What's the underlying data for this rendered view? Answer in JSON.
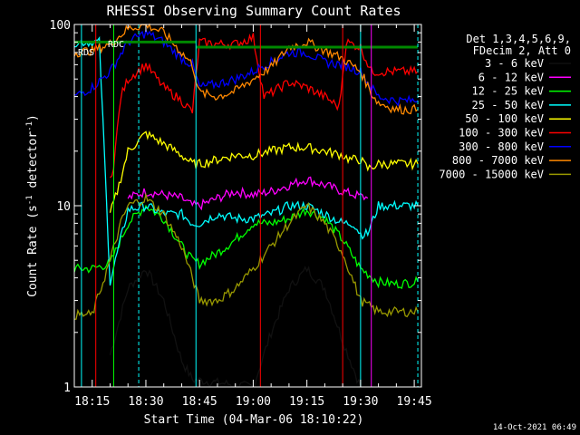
{
  "chart_data": {
    "type": "line",
    "title": "RHESSI Observing Summary Count Rates",
    "xlabel": "Start Time (04-Mar-06 18:10:22)",
    "ylabel": "Count Rate (s⁻¹ detector⁻¹)",
    "ylabel_parts": [
      "Count Rate (s",
      "-1",
      " detector",
      "-1",
      ")"
    ],
    "y_scale": "log",
    "ylim": [
      1,
      100
    ],
    "y_tick_labels": [
      "1",
      "10",
      "100"
    ],
    "x_range_minutes": [
      "18:10",
      "19:47"
    ],
    "x_tick_labels": [
      "18:15",
      "18:30",
      "18:45",
      "19:00",
      "19:15",
      "19:30",
      "19:45"
    ],
    "info": {
      "line1": "Det 1,3,4,5,6,9,",
      "line2": "FDecim 2, Att 0"
    },
    "annotations": [
      "RDC",
      "RDS"
    ],
    "timestamp": "14-Oct-2021 06:49",
    "series": [
      {
        "name": "3 - 6 keV",
        "color": "#000000",
        "x": [
          "18:20",
          "18:25",
          "18:30",
          "18:35",
          "18:40",
          "18:43",
          "19:00",
          "19:05",
          "19:10",
          "19:15",
          "19:20",
          "19:25",
          "19:30"
        ],
        "values": [
          1.5,
          3.5,
          4.5,
          3.0,
          1.4,
          1.1,
          1.0,
          2.0,
          3.5,
          4.5,
          3.5,
          1.8,
          1.0
        ]
      },
      {
        "name": "6 - 12 keV",
        "color": "#ff00ff",
        "x": [
          "18:25",
          "18:30",
          "18:35",
          "18:40",
          "18:43",
          "18:45",
          "18:50",
          "18:55",
          "19:00",
          "19:05",
          "19:10",
          "19:15",
          "19:20",
          "19:25",
          "19:32"
        ],
        "values": [
          11,
          12,
          11.5,
          11,
          10,
          10,
          11,
          12,
          11.5,
          12,
          13,
          14,
          13,
          12,
          11
        ]
      },
      {
        "name": "12 - 25 keV",
        "color": "#00ff00",
        "x": [
          "18:10",
          "18:15",
          "18:20",
          "18:25",
          "18:30",
          "18:35",
          "18:40",
          "18:43",
          "18:45",
          "18:50",
          "18:55",
          "19:00",
          "19:05",
          "19:10",
          "19:15",
          "19:20",
          "19:25",
          "19:30",
          "19:35",
          "19:40",
          "19:46"
        ],
        "values": [
          4.5,
          4.5,
          4.8,
          8,
          10,
          8.5,
          6,
          5,
          4.8,
          5.5,
          6.5,
          8,
          8,
          8.5,
          9.5,
          8.5,
          6.5,
          4.5,
          3.8,
          3.7,
          3.8
        ]
      },
      {
        "name": "25 - 50 keV",
        "color": "#00ffff",
        "x": [
          "18:10",
          "18:12",
          "18:15",
          "18:17",
          "18:20",
          "18:25",
          "18:30",
          "18:35",
          "18:40",
          "18:43",
          "18:45",
          "18:50",
          "18:55",
          "19:00",
          "19:05",
          "19:10",
          "19:15",
          "19:20",
          "19:25",
          "19:28",
          "19:30",
          "19:32",
          "19:35",
          "19:40",
          "19:46"
        ],
        "values": [
          80,
          80,
          80,
          80,
          3.8,
          9.5,
          10,
          9,
          9,
          8,
          8,
          9,
          8.5,
          8.5,
          9,
          10,
          10,
          9,
          8,
          8,
          7,
          7,
          10,
          10,
          10
        ]
      },
      {
        "name": "50 - 100 keV",
        "color": "#ffff00",
        "x": [
          "18:20",
          "18:22",
          "18:25",
          "18:30",
          "18:35",
          "18:40",
          "18:43",
          "18:45",
          "18:50",
          "18:55",
          "19:00",
          "19:05",
          "19:10",
          "19:15",
          "19:20",
          "19:25",
          "19:27",
          "19:30",
          "19:32",
          "19:35",
          "19:40",
          "19:46"
        ],
        "values": [
          9,
          12,
          20,
          25,
          22,
          19,
          17,
          17,
          18,
          19,
          19,
          20,
          21,
          21,
          20,
          19,
          18,
          18,
          16,
          17,
          17,
          17
        ]
      },
      {
        "name": "100 - 300 keV",
        "color": "#ff0000",
        "x": [
          "18:20",
          "18:21",
          "18:23",
          "18:25",
          "18:30",
          "18:35",
          "18:40",
          "18:43",
          "18:45",
          "18:50",
          "18:55",
          "19:00",
          "19:03",
          "19:05",
          "19:10",
          "19:15",
          "19:20",
          "19:24",
          "19:26",
          "19:30",
          "19:33",
          "19:35",
          "19:40",
          "19:46"
        ],
        "values": [
          14,
          17,
          40,
          50,
          60,
          45,
          38,
          33,
          80,
          78,
          78,
          85,
          40,
          42,
          48,
          45,
          40,
          35,
          80,
          75,
          55,
          55,
          55,
          55
        ]
      },
      {
        "name": "300 - 800 keV",
        "color": "#0000ff",
        "x": [
          "18:10",
          "18:15",
          "18:20",
          "18:25",
          "18:30",
          "18:35",
          "18:40",
          "18:43",
          "18:45",
          "18:50",
          "18:55",
          "19:00",
          "19:03",
          "19:05",
          "19:10",
          "19:15",
          "19:20",
          "19:25",
          "19:30",
          "19:33",
          "19:35",
          "19:40",
          "19:46"
        ],
        "values": [
          40,
          45,
          55,
          80,
          90,
          80,
          65,
          60,
          45,
          47,
          50,
          55,
          60,
          62,
          70,
          70,
          62,
          60,
          55,
          45,
          40,
          38,
          38
        ]
      },
      {
        "name": "800 - 7000 keV",
        "color": "#ff8800",
        "x": [
          "18:10",
          "18:15",
          "18:20",
          "18:25",
          "18:30",
          "18:35",
          "18:40",
          "18:43",
          "18:45",
          "18:50",
          "18:55",
          "19:00",
          "19:03",
          "19:05",
          "19:10",
          "19:15",
          "19:20",
          "19:25",
          "19:30",
          "19:33",
          "19:35",
          "19:40",
          "19:46"
        ],
        "values": [
          70,
          72,
          78,
          95,
          100,
          90,
          70,
          60,
          42,
          40,
          43,
          50,
          55,
          58,
          75,
          80,
          72,
          65,
          55,
          42,
          37,
          34,
          34
        ]
      },
      {
        "name": "7000 - 15000 keV",
        "color": "#999900",
        "x": [
          "18:10",
          "18:15",
          "18:20",
          "18:23",
          "18:25",
          "18:30",
          "18:35",
          "18:40",
          "18:43",
          "18:45",
          "18:50",
          "18:55",
          "19:00",
          "19:05",
          "19:10",
          "19:15",
          "19:20",
          "19:25",
          "19:30",
          "19:35",
          "19:40",
          "19:46"
        ],
        "values": [
          2.5,
          2.5,
          5,
          8,
          10,
          11,
          9,
          6,
          4,
          3,
          3,
          3.5,
          4.5,
          6,
          8,
          10,
          8,
          5.5,
          3,
          2.6,
          2.6,
          2.6
        ]
      }
    ],
    "attenuator_levels": [
      {
        "color": "#008800",
        "segments": [
          {
            "x0": "18:10",
            "x1": "18:44",
            "y": 80
          },
          {
            "x0": "18:44",
            "x1": "19:46",
            "y": 75
          }
        ]
      }
    ],
    "vertical_markers": [
      {
        "x": "18:12",
        "color": "#00ffff",
        "dashed": false
      },
      {
        "x": "18:16",
        "color": "#ff0000",
        "dashed": false
      },
      {
        "x": "18:21",
        "color": "#00ff00",
        "dashed": false
      },
      {
        "x": "18:28",
        "color": "#00ffff",
        "dashed": true
      },
      {
        "x": "18:44",
        "color": "#00ffff",
        "dashed": false
      },
      {
        "x": "19:02",
        "color": "#ff0000",
        "dashed": false
      },
      {
        "x": "19:25",
        "color": "#ff0000",
        "dashed": false
      },
      {
        "x": "19:30",
        "color": "#00ffff",
        "dashed": false
      },
      {
        "x": "19:33",
        "color": "#ff00ff",
        "dashed": false
      },
      {
        "x": "19:46",
        "color": "#00ffff",
        "dashed": true
      }
    ]
  }
}
